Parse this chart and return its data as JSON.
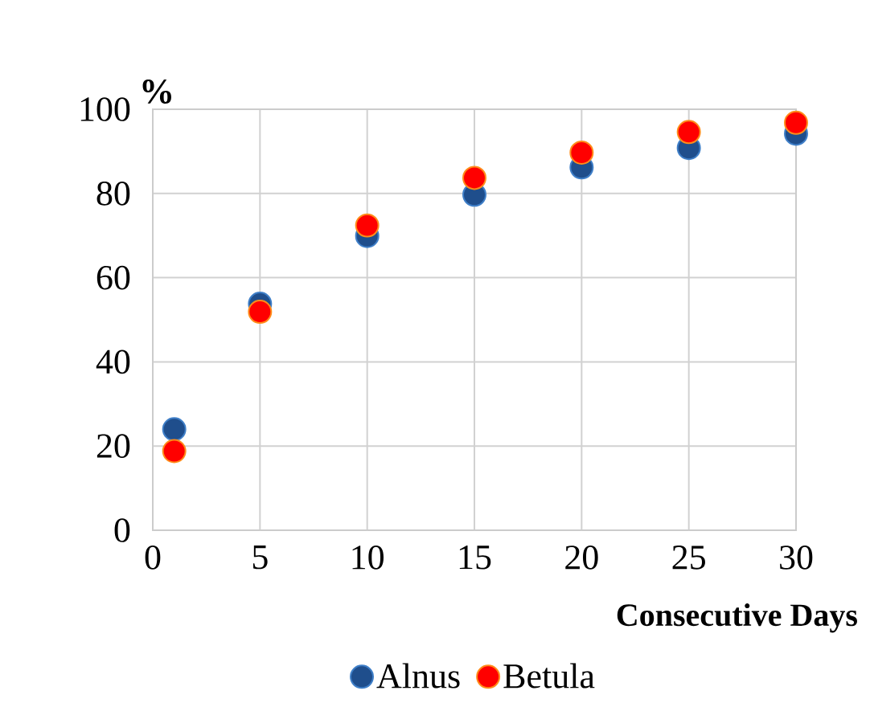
{
  "chart_data": {
    "type": "scatter",
    "ylabel": "%",
    "xlabel": "Consecutive Days",
    "xlim": [
      0,
      30
    ],
    "ylim": [
      0,
      100
    ],
    "xticks": [
      0,
      5,
      10,
      15,
      20,
      25,
      30
    ],
    "yticks": [
      0,
      20,
      40,
      60,
      80,
      100
    ],
    "grid": true,
    "legend": "bottom",
    "marker": "circle",
    "series": [
      {
        "name": "Alnus",
        "color": "#1f4e8c",
        "x": [
          1,
          5,
          10,
          15,
          20,
          25,
          30
        ],
        "values": [
          24.0,
          53.8,
          69.9,
          79.7,
          86.2,
          90.8,
          94.2
        ]
      },
      {
        "name": "Betula",
        "color": "#ff0000",
        "x": [
          1,
          5,
          10,
          15,
          20,
          25,
          30
        ],
        "values": [
          18.8,
          51.9,
          72.4,
          83.7,
          89.7,
          94.6,
          96.8
        ]
      }
    ]
  }
}
